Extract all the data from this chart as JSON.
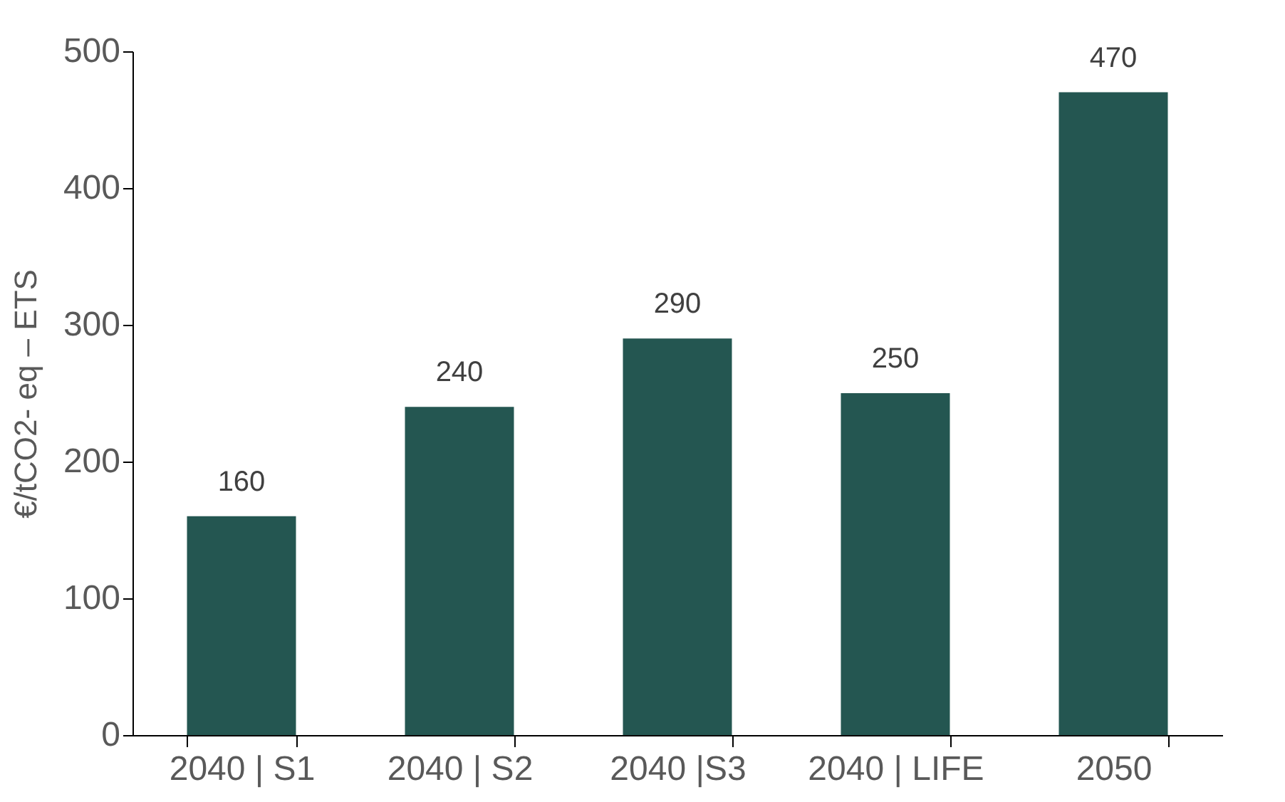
{
  "chart_data": {
    "type": "bar",
    "ylabel": "€/tCO2- eq – ETS",
    "categories": [
      "2040 | S1",
      "2040 | S2",
      "2040 |S3",
      "2040 | LIFE",
      "2050"
    ],
    "values": [
      160,
      240,
      290,
      250,
      470
    ],
    "color": "#245651",
    "ylim": [
      0,
      500
    ],
    "yticks": [
      0,
      100,
      200,
      300,
      400,
      500
    ],
    "grid": false,
    "data_labels": true
  }
}
